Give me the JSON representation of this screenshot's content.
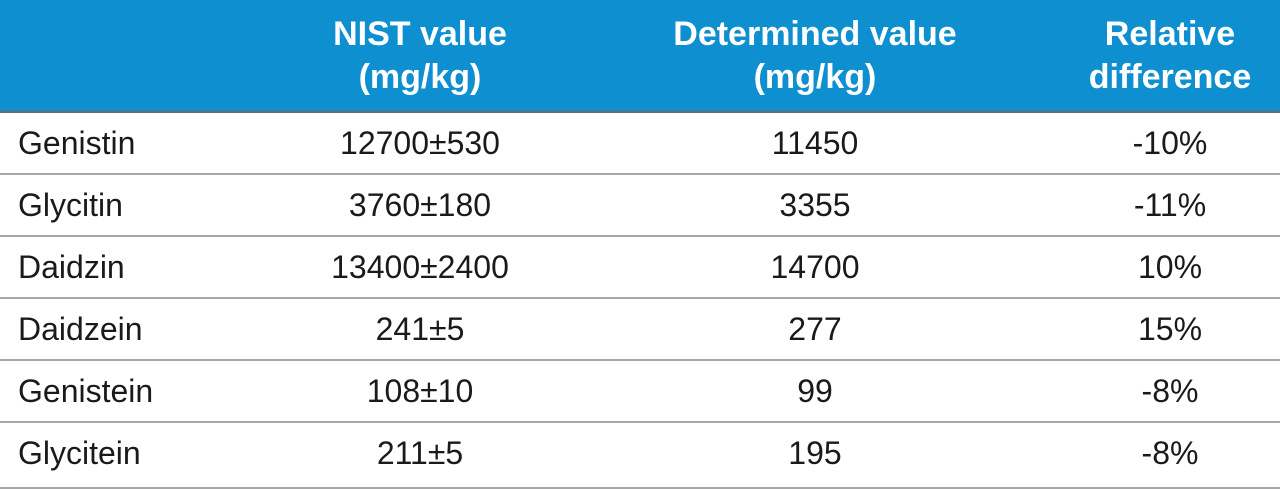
{
  "header": {
    "col_name": "",
    "col_nist_line1": "NIST value",
    "col_nist_line2": "(mg/kg)",
    "col_determined_line1": "Determined value",
    "col_determined_line2": "(mg/kg)",
    "col_relative_line1": "Relative",
    "col_relative_line2": "difference"
  },
  "rows": [
    {
      "name": "Genistin",
      "nist": "12700±530",
      "determined": "11450",
      "relative": "-10%"
    },
    {
      "name": "Glycitin",
      "nist": "3760±180",
      "determined": "3355",
      "relative": "-11%"
    },
    {
      "name": "Daidzin",
      "nist": "13400±2400",
      "determined": "14700",
      "relative": "10%"
    },
    {
      "name": "Daidzein",
      "nist": "241±5",
      "determined": "277",
      "relative": "15%"
    },
    {
      "name": "Genistein",
      "nist": "108±10",
      "determined": "99",
      "relative": "-8%"
    },
    {
      "name": "Glycitein",
      "nist": "211±5",
      "determined": "195",
      "relative": "-8%"
    }
  ],
  "colors": {
    "header_background": "#0e8fd0",
    "header_text": "#ffffff",
    "body_text": "#1a1a1a",
    "row_divider": "#a6a6a6"
  }
}
